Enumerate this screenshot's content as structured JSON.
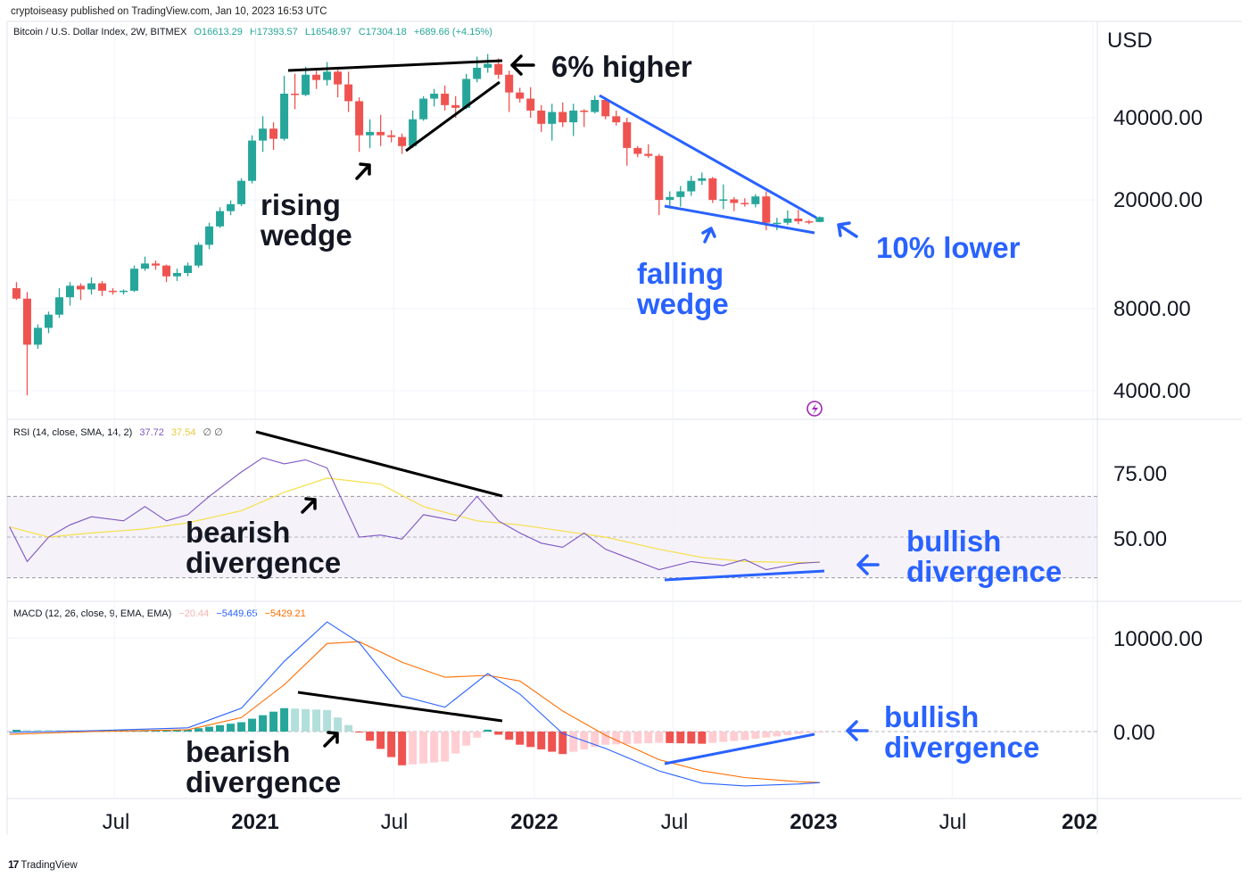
{
  "header": {
    "text": "cryptoiseasy published on TradingView.com, Jan 10, 2023 16:53 UTC"
  },
  "price_pane": {
    "symbol": "Bitcoin / U.S. Dollar Index, 2W, BITMEX",
    "open": "O16613.29",
    "high": "H17393.57",
    "low": "L16548.97",
    "close": "C17304.18",
    "change": "+689.66 (+4.15%)",
    "currency": "USD",
    "axis_labels": [
      "40000.00",
      "20000.00",
      "8000.00",
      "4000.00"
    ]
  },
  "rsi_pane": {
    "title": "RSI (14, close, SMA, 14, 2)",
    "value": "37.72",
    "sma_value": "37.54",
    "extra": "∅ ∅",
    "axis_labels": [
      "75.00",
      "50.00"
    ]
  },
  "macd_pane": {
    "title": "MACD (12, 26, close, 9, EMA, EMA)",
    "hist_value": "−20.44",
    "macd_value": "−5449.65",
    "signal_value": "−5429.21",
    "axis_labels": [
      "10000.00",
      "0.00"
    ]
  },
  "time_axis": [
    "Jul",
    "2021",
    "Jul",
    "2022",
    "Jul",
    "2023",
    "Jul",
    "202"
  ],
  "annotations": {
    "six_pct_higher": "6% higher",
    "rising_wedge_1": "rising",
    "rising_wedge_2": "wedge",
    "ten_pct_lower": "10% lower",
    "falling_wedge_1": "falling",
    "falling_wedge_2": "wedge",
    "bearish_1": "bearish",
    "divergence_1": "divergence",
    "bullish_1": "bullish",
    "divergence_2": "divergence",
    "bearish_2": "bearish",
    "divergence_3": "divergence",
    "bullish_2": "bullish",
    "divergence_4": "divergence"
  },
  "footer": {
    "brand": "TradingView"
  },
  "colors": {
    "up": "#26a69a",
    "down": "#ef5350",
    "rsi": "#7e57c2",
    "rsi_sma": "#f5e04a",
    "macd": "#2962ff",
    "signal": "#ff6d00",
    "annotation_blue": "#2962ff"
  },
  "chart_data": [
    {
      "type": "candlestick",
      "title": "Bitcoin / U.S. Dollar Index, 2W, BITMEX",
      "ylabel": "USD",
      "yscale": "log",
      "ylim": [
        3000,
        75000
      ],
      "xlim": [
        "2020-02-15",
        "2024-01-01"
      ],
      "ohlc": [
        [
          "2020-02-24",
          9500,
          10000,
          8600,
          8700
        ],
        [
          "2020-03-09",
          8700,
          9200,
          3850,
          5900
        ],
        [
          "2020-03-23",
          5900,
          7000,
          5700,
          6800
        ],
        [
          "2020-04-06",
          6800,
          7800,
          6500,
          7600
        ],
        [
          "2020-04-20",
          7600,
          9500,
          7400,
          8800
        ],
        [
          "2020-05-04",
          8800,
          10000,
          8200,
          9700
        ],
        [
          "2020-05-18",
          9700,
          9900,
          8600,
          9400
        ],
        [
          "2020-06-01",
          9400,
          10400,
          9000,
          9900
        ],
        [
          "2020-06-15",
          9900,
          10100,
          8900,
          9300
        ],
        [
          "2020-06-29",
          9300,
          9500,
          9000,
          9200
        ],
        [
          "2020-07-13",
          9200,
          9400,
          9000,
          9300
        ],
        [
          "2020-07-27",
          9300,
          11500,
          9200,
          11200
        ],
        [
          "2020-08-10",
          11200,
          12400,
          11000,
          11700
        ],
        [
          "2020-08-24",
          11700,
          12000,
          11100,
          11500
        ],
        [
          "2020-09-07",
          11500,
          11600,
          10000,
          10500
        ],
        [
          "2020-09-21",
          10500,
          11200,
          10100,
          10800
        ],
        [
          "2020-10-05",
          10800,
          11800,
          10500,
          11500
        ],
        [
          "2020-10-19",
          11500,
          14000,
          11300,
          13700
        ],
        [
          "2020-11-02",
          13700,
          16500,
          13200,
          16000
        ],
        [
          "2020-11-16",
          16000,
          18800,
          15800,
          18200
        ],
        [
          "2020-11-30",
          18200,
          19900,
          17600,
          19300
        ],
        [
          "2020-12-14",
          19300,
          24000,
          19000,
          23500
        ],
        [
          "2020-12-28",
          23500,
          34500,
          23000,
          33000
        ],
        [
          "2021-01-11",
          33000,
          40500,
          30000,
          36500
        ],
        [
          "2021-01-25",
          36500,
          38500,
          30500,
          33500
        ],
        [
          "2021-02-08",
          33500,
          57000,
          33000,
          49000
        ],
        [
          "2021-02-22",
          49000,
          58000,
          43000,
          48500
        ],
        [
          "2021-03-08",
          48500,
          61500,
          48000,
          57500
        ],
        [
          "2021-03-22",
          57500,
          59500,
          51000,
          55000
        ],
        [
          "2021-04-05",
          55000,
          64000,
          52500,
          59000
        ],
        [
          "2021-04-19",
          59000,
          60000,
          47500,
          53000
        ],
        [
          "2021-05-03",
          53000,
          59000,
          42000,
          46000
        ],
        [
          "2021-05-17",
          46000,
          47500,
          30000,
          34500
        ],
        [
          "2021-05-31",
          34500,
          39500,
          31000,
          35500
        ],
        [
          "2021-06-14",
          35500,
          41000,
          31500,
          34500
        ],
        [
          "2021-06-28",
          34500,
          36000,
          32500,
          34000
        ],
        [
          "2021-07-12",
          34000,
          35000,
          29500,
          31500
        ],
        [
          "2021-07-26",
          31500,
          42500,
          31000,
          39500
        ],
        [
          "2021-08-09",
          39500,
          48000,
          39000,
          47000
        ],
        [
          "2021-08-23",
          47000,
          51000,
          44000,
          49000
        ],
        [
          "2021-09-06",
          49000,
          52500,
          42500,
          44500
        ],
        [
          "2021-09-20",
          44500,
          48000,
          40000,
          43500
        ],
        [
          "2021-10-04",
          43500,
          58000,
          43000,
          55500
        ],
        [
          "2021-10-18",
          55500,
          67000,
          54000,
          61000
        ],
        [
          "2021-11-01",
          61000,
          68500,
          58500,
          63000
        ],
        [
          "2021-11-15",
          63000,
          66000,
          55500,
          57500
        ],
        [
          "2021-11-29",
          57500,
          59500,
          42000,
          49500
        ],
        [
          "2021-12-13",
          49500,
          51500,
          45500,
          47000
        ],
        [
          "2021-12-27",
          47000,
          51800,
          40000,
          42500
        ],
        [
          "2022-01-10",
          42500,
          44500,
          35500,
          38000
        ],
        [
          "2022-01-24",
          38000,
          45000,
          33000,
          42000
        ],
        [
          "2022-02-07",
          42000,
          45500,
          37000,
          38500
        ],
        [
          "2022-02-21",
          38500,
          45000,
          34300,
          42500
        ],
        [
          "2022-03-07",
          42500,
          43000,
          37000,
          42000
        ],
        [
          "2022-03-21",
          42000,
          48200,
          41500,
          46500
        ],
        [
          "2022-04-04",
          46500,
          47500,
          39500,
          40500
        ],
        [
          "2022-04-18",
          40500,
          42500,
          37500,
          38500
        ],
        [
          "2022-05-02",
          38500,
          40000,
          26700,
          31000
        ],
        [
          "2022-05-16",
          31000,
          31500,
          28700,
          29500
        ],
        [
          "2022-05-30",
          29500,
          32000,
          28500,
          29000
        ],
        [
          "2022-06-13",
          29000,
          29500,
          17600,
          20000
        ],
        [
          "2022-06-27",
          20000,
          21500,
          18600,
          20500
        ],
        [
          "2022-07-11",
          20500,
          22500,
          18900,
          21500
        ],
        [
          "2022-07-25",
          21500,
          24500,
          20700,
          23500
        ],
        [
          "2022-08-08",
          23500,
          25200,
          22700,
          24000
        ],
        [
          "2022-08-22",
          24000,
          24300,
          19500,
          20000
        ],
        [
          "2022-09-05",
          20000,
          22800,
          18500,
          20100
        ],
        [
          "2022-09-19",
          20100,
          20500,
          18200,
          19500
        ],
        [
          "2022-10-03",
          19500,
          20300,
          18900,
          19300
        ],
        [
          "2022-10-17",
          19300,
          21000,
          18800,
          20600
        ],
        [
          "2022-10-31",
          20600,
          21500,
          15500,
          16500
        ],
        [
          "2022-11-14",
          16500,
          17200,
          15500,
          16500
        ],
        [
          "2022-11-28",
          16500,
          18300,
          16200,
          17100
        ],
        [
          "2022-12-12",
          17100,
          18400,
          16300,
          16700
        ],
        [
          "2022-12-26",
          16700,
          16900,
          16300,
          16613.29
        ],
        [
          "2023-01-09",
          16613.29,
          17393.57,
          16548.97,
          17304.18
        ]
      ]
    },
    {
      "type": "line",
      "title": "RSI (14, close, SMA, 14, 2)",
      "ylim": [
        25,
        100
      ],
      "series": [
        {
          "name": "RSI",
          "x": [
            "2020-02-15",
            "2020-03-09",
            "2020-04-06",
            "2020-05-04",
            "2020-06-01",
            "2020-07-13",
            "2020-08-10",
            "2020-09-07",
            "2020-10-05",
            "2020-11-02",
            "2020-12-14",
            "2021-01-11",
            "2021-02-08",
            "2021-03-08",
            "2021-04-05",
            "2021-05-17",
            "2021-06-14",
            "2021-07-12",
            "2021-08-09",
            "2021-09-20",
            "2021-10-18",
            "2021-11-15",
            "2021-12-13",
            "2022-01-10",
            "2022-02-07",
            "2022-03-07",
            "2022-04-04",
            "2022-05-02",
            "2022-06-13",
            "2022-07-25",
            "2022-09-05",
            "2022-10-03",
            "2022-10-31",
            "2022-12-12",
            "2023-01-09"
          ],
          "values": [
            55,
            38,
            50,
            56,
            60,
            58,
            65,
            58,
            61,
            70,
            82,
            89,
            86,
            88,
            84,
            50,
            51,
            49,
            61,
            58,
            70,
            58,
            52,
            47,
            45,
            52,
            44,
            40,
            34,
            38,
            36,
            39,
            34,
            37,
            37.72
          ]
        },
        {
          "name": "SMA",
          "x": [
            "2020-02-15",
            "2020-04-06",
            "2020-06-01",
            "2020-08-10",
            "2020-10-05",
            "2020-12-14",
            "2021-02-08",
            "2021-04-05",
            "2021-06-14",
            "2021-08-09",
            "2021-10-18",
            "2021-12-13",
            "2022-02-07",
            "2022-04-04",
            "2022-06-13",
            "2022-08-08",
            "2022-10-03",
            "2022-12-12",
            "2023-01-09"
          ],
          "values": [
            55,
            50,
            52,
            54,
            57,
            63,
            72,
            79,
            76,
            65,
            58,
            56,
            53,
            50,
            44,
            40,
            38,
            37.5,
            37.54
          ]
        }
      ]
    },
    {
      "type": "line+bar",
      "title": "MACD (12, 26, close, 9, EMA, EMA)",
      "ylim": [
        -7000,
        14000
      ],
      "series": [
        {
          "name": "MACD",
          "x": [
            "2020-02-15",
            "2020-06-01",
            "2020-10-05",
            "2020-12-14",
            "2021-02-08",
            "2021-04-05",
            "2021-05-17",
            "2021-07-12",
            "2021-09-06",
            "2021-11-01",
            "2021-12-13",
            "2022-02-07",
            "2022-04-04",
            "2022-06-13",
            "2022-08-08",
            "2022-10-03",
            "2022-12-12",
            "2023-01-09"
          ],
          "values": [
            -100,
            100,
            400,
            2500,
            7500,
            11700,
            9500,
            3800,
            2600,
            6200,
            4000,
            -200,
            -1800,
            -4200,
            -5500,
            -5800,
            -5600,
            -5449.65
          ]
        },
        {
          "name": "Signal",
          "x": [
            "2020-02-15",
            "2020-06-01",
            "2020-10-05",
            "2020-12-14",
            "2021-02-08",
            "2021-04-05",
            "2021-05-17",
            "2021-07-12",
            "2021-09-06",
            "2021-11-01",
            "2021-12-13",
            "2022-02-07",
            "2022-04-04",
            "2022-06-13",
            "2022-08-08",
            "2022-10-03",
            "2022-12-12",
            "2023-01-09"
          ],
          "values": [
            -300,
            0,
            200,
            1500,
            5000,
            9400,
            9600,
            7400,
            5800,
            6000,
            5400,
            2200,
            -400,
            -3000,
            -4200,
            -4900,
            -5350,
            -5429.21
          ]
        },
        {
          "name": "Histogram",
          "x": [
            "2020-02-15",
            "2020-06-01",
            "2020-10-05",
            "2020-12-14",
            "2021-02-08",
            "2021-04-05",
            "2021-05-17",
            "2021-07-12",
            "2021-09-06",
            "2021-11-01",
            "2021-12-13",
            "2022-02-07",
            "2022-04-04",
            "2022-06-13",
            "2022-08-08",
            "2022-10-03",
            "2022-12-12",
            "2023-01-09"
          ],
          "values": [
            200,
            100,
            200,
            1000,
            2500,
            2300,
            -100,
            -3600,
            -3200,
            200,
            -1400,
            -2400,
            -1400,
            -1200,
            -1300,
            -900,
            -250,
            -20.44
          ]
        }
      ]
    }
  ]
}
